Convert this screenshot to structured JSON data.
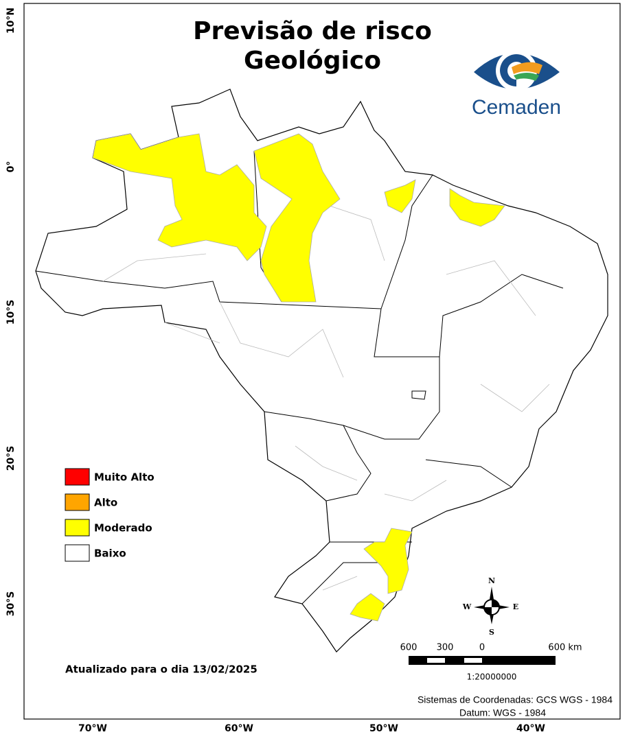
{
  "header": {
    "title_lines": [
      "Previsão de risco",
      "Geológico"
    ]
  },
  "logo": {
    "text": "Cemaden"
  },
  "legend": {
    "items": [
      {
        "label": "Muito Alto",
        "color": "#ff0000"
      },
      {
        "label": "Alto",
        "color": "#ffa500"
      },
      {
        "label": "Moderado",
        "color": "#ffff00"
      },
      {
        "label": "Baixo",
        "color": "#ffffff"
      }
    ]
  },
  "map": {
    "x_labels": [
      "70°W",
      "60°W",
      "50°W",
      "40°W"
    ],
    "y_labels": [
      "10°N",
      "0°",
      "10°S",
      "20°S",
      "30°S"
    ]
  },
  "compass": {
    "n": "N",
    "s": "S",
    "e": "E",
    "w": "W"
  },
  "scale_bar": {
    "labels": [
      "600",
      "300",
      "0",
      "600 km"
    ],
    "ratio": "1:20000000"
  },
  "footer": {
    "updated": "Atualizado para o dia 13/02/2025",
    "crs": "Sistemas de Coordenadas: GCS WGS - 1984",
    "datum": "Datum: WGS - 1984"
  }
}
